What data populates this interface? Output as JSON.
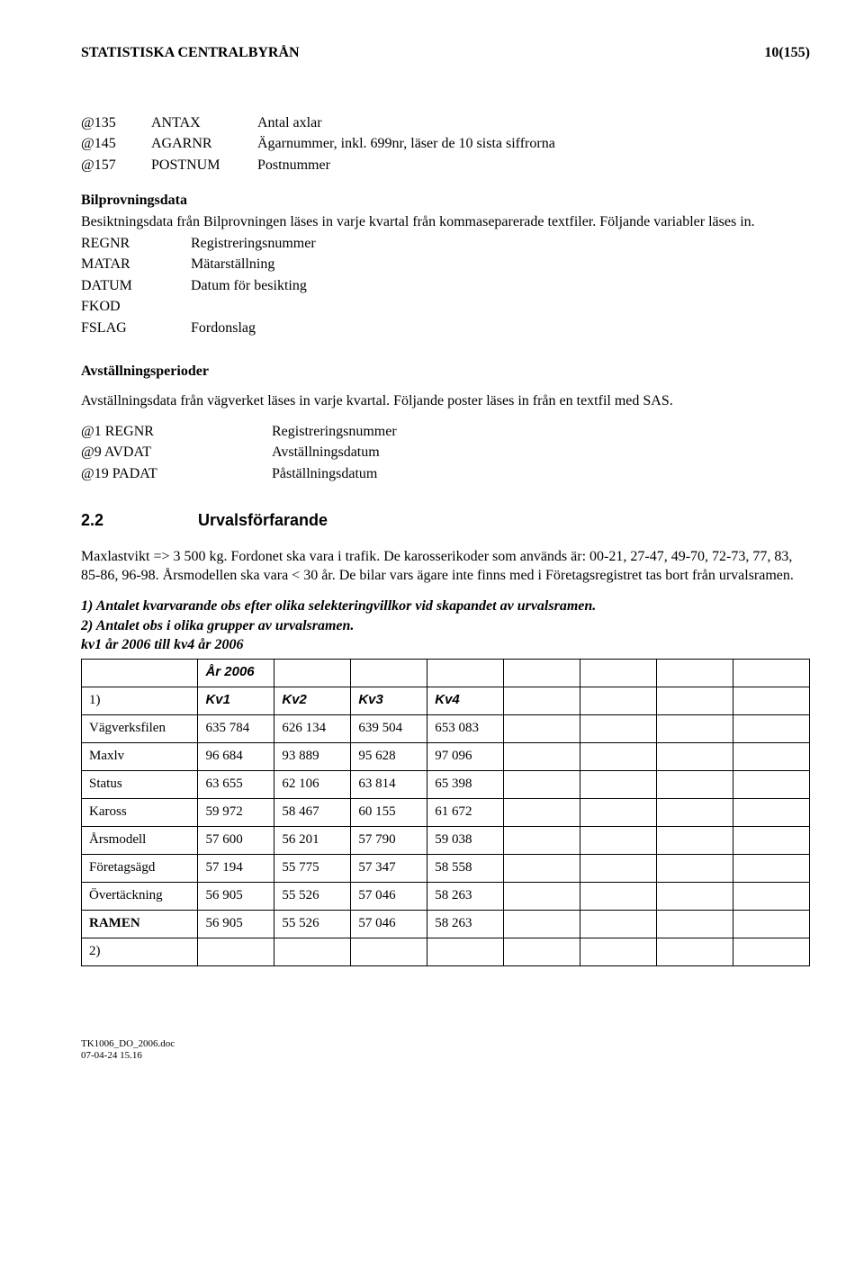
{
  "header": {
    "org": "STATISTISKA CENTRALBYRÅN",
    "page": "10(155)"
  },
  "defs1": {
    "rows": [
      {
        "k": "@135",
        "n": "ANTAX",
        "v": "Antal axlar"
      },
      {
        "k": "@145",
        "n": "AGARNR",
        "v": "Ägarnummer, inkl. 699nr, läser de 10 sista siffrorna"
      },
      {
        "k": "@157",
        "n": "POSTNUM",
        "v": "Postnummer"
      }
    ]
  },
  "bp": {
    "heading": "Bilprovningsdata",
    "text": "Besiktningsdata från Bilprovningen läses in varje kvartal från kommaseparerade textfiler. Följande variabler läses in.",
    "rows": [
      {
        "k": "REGNR",
        "v": "Registreringsnummer"
      },
      {
        "k": "MATAR",
        "v": "Mätarställning"
      },
      {
        "k": "DATUM",
        "v": "Datum för besikting"
      },
      {
        "k": "FKOD",
        "v": ""
      },
      {
        "k": "FSLAG",
        "v": "Fordonslag"
      }
    ]
  },
  "avst": {
    "heading": "Avställningsperioder",
    "text": "Avställningsdata från vägverket läses in varje kvartal. Följande poster läses in från en textfil med SAS.",
    "rows": [
      {
        "k": "@1 REGNR",
        "v": "Registreringsnummer"
      },
      {
        "k": "@9 AVDAT",
        "v": "Avställningsdatum"
      },
      {
        "k": "@19 PADAT",
        "v": "Påställningsdatum"
      }
    ]
  },
  "section": {
    "num": "2.2",
    "title": "Urvalsförfarande"
  },
  "urval_p1": "Maxlastvikt => 3 500 kg. Fordonet ska vara i trafik. De karosserikoder som används är: 00-21, 27-47, 49-70, 72-73, 77, 83, 85-86, 96-98. Årsmodellen ska vara < 30 år. De bilar vars ägare inte finns med i Företagsregistret tas bort från urvalsramen.",
  "urval_i1": "1) Antalet kvarvarande obs efter olika selekteringvillkor vid skapandet av urvalsramen.",
  "urval_i2": "2) Antalet obs i olika grupper av urvalsramen.",
  "urval_i3": "kv1 år 2006 till kv4 år 2006",
  "tbl": {
    "year": "År 2006",
    "hdr": {
      "c0": "1)",
      "c1": "Kv1",
      "c2": "Kv2",
      "c3": "Kv3",
      "c4": "Kv4"
    },
    "rows": [
      {
        "label": "Vägverksfilen",
        "v": [
          "635 784",
          "626 134",
          "639 504",
          "653 083"
        ]
      },
      {
        "label": "Maxlv",
        "v": [
          "96 684",
          "93 889",
          "95 628",
          "97 096"
        ]
      },
      {
        "label": "Status",
        "v": [
          "63 655",
          "62 106",
          "63 814",
          "65 398"
        ]
      },
      {
        "label": "Kaross",
        "v": [
          "59 972",
          "58 467",
          "60 155",
          "61 672"
        ]
      },
      {
        "label": "Årsmodell",
        "v": [
          "57 600",
          "56 201",
          "57 790",
          "59 038"
        ]
      },
      {
        "label": "Företagsägd",
        "v": [
          "57 194",
          "55 775",
          "57 347",
          "58 558"
        ]
      },
      {
        "label": "Övertäckning",
        "v": [
          "56 905",
          "55 526",
          "57 046",
          "58 263"
        ]
      },
      {
        "label": "RAMEN",
        "bold": true,
        "v": [
          "56 905",
          "55 526",
          "57 046",
          "58 263"
        ]
      },
      {
        "label": "2)",
        "v": [
          "",
          "",
          "",
          ""
        ]
      }
    ]
  },
  "footer": {
    "l1": "TK1006_DO_2006.doc",
    "l2": "07-04-24 15.16"
  }
}
